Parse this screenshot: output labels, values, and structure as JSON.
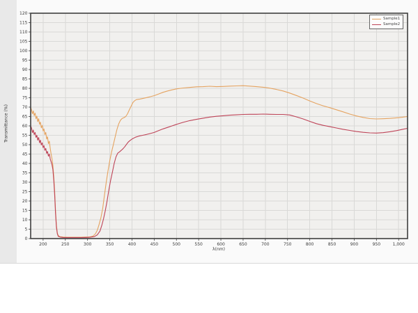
{
  "colors": {
    "page_bg": "#ffffff",
    "chart_zone_bg": "#fafafa",
    "left_strip": "#e9e9e9",
    "plot_bg": "#f1f0ee",
    "grid": "#d9d9d7",
    "axis_border": "#3e3e3e",
    "tick_text": "#3a3a3a",
    "divider": "#d8d8d8",
    "sample1": "#E5A360",
    "sample2": "#BE4357"
  },
  "chart_data": {
    "type": "line",
    "title": "",
    "xlabel": "λ(nm)",
    "ylabel": "Transmittance (%)",
    "xlim": [
      172,
      1020
    ],
    "ylim": [
      0,
      120
    ],
    "y_tick_step": 5,
    "grid": true,
    "legend_position": "top-right",
    "x_ticks": [
      200,
      250,
      300,
      350,
      400,
      450,
      500,
      550,
      600,
      650,
      700,
      750,
      800,
      850,
      900,
      950,
      1000
    ],
    "x_tick_labels": [
      "200",
      "250",
      "300",
      "350",
      "400",
      "450",
      "500",
      "550",
      "600",
      "650",
      "700",
      "750",
      "800",
      "850",
      "900",
      "950",
      "1,000"
    ],
    "series": [
      {
        "name": "Sample1",
        "color": "#E5A360",
        "points": [
          [
            172,
            70
          ],
          [
            174,
            68.5
          ],
          [
            176,
            66.5
          ],
          [
            178,
            68
          ],
          [
            180,
            65.5
          ],
          [
            182,
            66.8
          ],
          [
            184,
            63.8
          ],
          [
            186,
            65.2
          ],
          [
            188,
            62.3
          ],
          [
            190,
            63.8
          ],
          [
            192,
            60.8
          ],
          [
            194,
            62
          ],
          [
            196,
            59
          ],
          [
            198,
            60.3
          ],
          [
            200,
            57.3
          ],
          [
            202,
            58.4
          ],
          [
            204,
            55.4
          ],
          [
            206,
            56.5
          ],
          [
            208,
            53
          ],
          [
            210,
            54.2
          ],
          [
            212,
            50.6
          ],
          [
            214,
            51.8
          ],
          [
            216,
            48
          ],
          [
            218,
            45.2
          ],
          [
            220,
            42.6
          ],
          [
            222,
            39
          ],
          [
            224,
            33
          ],
          [
            226,
            25
          ],
          [
            228,
            15
          ],
          [
            230,
            7
          ],
          [
            232,
            3
          ],
          [
            234,
            1.6
          ],
          [
            238,
            1
          ],
          [
            245,
            0.8
          ],
          [
            255,
            0.7
          ],
          [
            265,
            0.7
          ],
          [
            275,
            0.7
          ],
          [
            285,
            0.7
          ],
          [
            295,
            0.8
          ],
          [
            305,
            0.9
          ],
          [
            312,
            1.3
          ],
          [
            318,
            2.6
          ],
          [
            322,
            4.5
          ],
          [
            326,
            7.5
          ],
          [
            330,
            11
          ],
          [
            334,
            16
          ],
          [
            338,
            23
          ],
          [
            342,
            30
          ],
          [
            346,
            36
          ],
          [
            350,
            41.5
          ],
          [
            354,
            46
          ],
          [
            358,
            50
          ],
          [
            362,
            54
          ],
          [
            366,
            58
          ],
          [
            370,
            61
          ],
          [
            374,
            63
          ],
          [
            378,
            64
          ],
          [
            382,
            64.4
          ],
          [
            386,
            65
          ],
          [
            390,
            66.5
          ],
          [
            394,
            68.5
          ],
          [
            398,
            70.5
          ],
          [
            402,
            72.4
          ],
          [
            406,
            73.4
          ],
          [
            410,
            74
          ],
          [
            418,
            74.3
          ],
          [
            426,
            74.7
          ],
          [
            434,
            75.1
          ],
          [
            442,
            75.6
          ],
          [
            450,
            76.1
          ],
          [
            460,
            77
          ],
          [
            470,
            77.9
          ],
          [
            480,
            78.6
          ],
          [
            490,
            79.2
          ],
          [
            500,
            79.7
          ],
          [
            515,
            80.2
          ],
          [
            530,
            80.5
          ],
          [
            545,
            80.8
          ],
          [
            560,
            80.9
          ],
          [
            575,
            81.1
          ],
          [
            590,
            80.9
          ],
          [
            605,
            81
          ],
          [
            620,
            81.2
          ],
          [
            635,
            81.3
          ],
          [
            650,
            81.4
          ],
          [
            665,
            81.2
          ],
          [
            680,
            80.9
          ],
          [
            695,
            80.6
          ],
          [
            710,
            80.1
          ],
          [
            725,
            79.4
          ],
          [
            740,
            78.6
          ],
          [
            755,
            77.5
          ],
          [
            770,
            76.2
          ],
          [
            785,
            74.8
          ],
          [
            800,
            73.3
          ],
          [
            815,
            71.9
          ],
          [
            830,
            70.7
          ],
          [
            845,
            69.7
          ],
          [
            860,
            68.6
          ],
          [
            875,
            67.5
          ],
          [
            890,
            66.3
          ],
          [
            905,
            65.3
          ],
          [
            920,
            64.5
          ],
          [
            935,
            63.9
          ],
          [
            950,
            63.7
          ],
          [
            965,
            63.8
          ],
          [
            980,
            64
          ],
          [
            995,
            64.3
          ],
          [
            1008,
            64.6
          ],
          [
            1020,
            65
          ]
        ]
      },
      {
        "name": "Sample2",
        "color": "#BE4357",
        "points": [
          [
            172,
            60
          ],
          [
            174,
            58.8
          ],
          [
            176,
            56.4
          ],
          [
            178,
            57.8
          ],
          [
            180,
            55.4
          ],
          [
            182,
            56.5
          ],
          [
            184,
            53.9
          ],
          [
            186,
            55
          ],
          [
            188,
            52.4
          ],
          [
            190,
            53.8
          ],
          [
            192,
            51
          ],
          [
            194,
            52.4
          ],
          [
            196,
            49.9
          ],
          [
            198,
            51
          ],
          [
            200,
            48.4
          ],
          [
            202,
            49.5
          ],
          [
            204,
            47
          ],
          [
            206,
            48
          ],
          [
            208,
            45.4
          ],
          [
            210,
            46.4
          ],
          [
            212,
            43.9
          ],
          [
            214,
            45
          ],
          [
            216,
            42.4
          ],
          [
            218,
            41
          ],
          [
            220,
            39.4
          ],
          [
            222,
            36.8
          ],
          [
            224,
            31
          ],
          [
            226,
            23
          ],
          [
            228,
            13.5
          ],
          [
            230,
            6
          ],
          [
            232,
            2.6
          ],
          [
            234,
            1.2
          ],
          [
            238,
            0.8
          ],
          [
            245,
            0.6
          ],
          [
            255,
            0.5
          ],
          [
            265,
            0.5
          ],
          [
            275,
            0.5
          ],
          [
            285,
            0.5
          ],
          [
            295,
            0.6
          ],
          [
            305,
            0.7
          ],
          [
            315,
            1
          ],
          [
            322,
            2
          ],
          [
            328,
            4
          ],
          [
            332,
            7
          ],
          [
            336,
            10.5
          ],
          [
            340,
            15
          ],
          [
            344,
            20
          ],
          [
            348,
            26
          ],
          [
            352,
            31
          ],
          [
            356,
            35.5
          ],
          [
            360,
            40
          ],
          [
            364,
            43.5
          ],
          [
            368,
            45.5
          ],
          [
            372,
            46.2
          ],
          [
            376,
            47
          ],
          [
            380,
            47.9
          ],
          [
            384,
            49
          ],
          [
            388,
            50.3
          ],
          [
            392,
            51.5
          ],
          [
            396,
            52.3
          ],
          [
            400,
            53
          ],
          [
            408,
            54
          ],
          [
            416,
            54.6
          ],
          [
            424,
            55
          ],
          [
            432,
            55.4
          ],
          [
            440,
            55.9
          ],
          [
            450,
            56.5
          ],
          [
            460,
            57.5
          ],
          [
            470,
            58.4
          ],
          [
            480,
            59.2
          ],
          [
            490,
            60
          ],
          [
            500,
            60.8
          ],
          [
            515,
            61.9
          ],
          [
            530,
            62.8
          ],
          [
            545,
            63.5
          ],
          [
            560,
            64.1
          ],
          [
            575,
            64.7
          ],
          [
            590,
            65.1
          ],
          [
            605,
            65.4
          ],
          [
            620,
            65.7
          ],
          [
            635,
            65.9
          ],
          [
            650,
            66.1
          ],
          [
            665,
            66.2
          ],
          [
            680,
            66.2
          ],
          [
            695,
            66.3
          ],
          [
            710,
            66.2
          ],
          [
            725,
            66.1
          ],
          [
            740,
            66.1
          ],
          [
            755,
            65.8
          ],
          [
            770,
            64.8
          ],
          [
            785,
            63.7
          ],
          [
            800,
            62.4
          ],
          [
            815,
            61.2
          ],
          [
            830,
            60.3
          ],
          [
            845,
            59.6
          ],
          [
            860,
            58.9
          ],
          [
            875,
            58.2
          ],
          [
            890,
            57.6
          ],
          [
            905,
            57
          ],
          [
            920,
            56.6
          ],
          [
            935,
            56.3
          ],
          [
            950,
            56.2
          ],
          [
            965,
            56.4
          ],
          [
            980,
            56.9
          ],
          [
            995,
            57.5
          ],
          [
            1008,
            58.1
          ],
          [
            1020,
            58.7
          ]
        ]
      }
    ]
  }
}
